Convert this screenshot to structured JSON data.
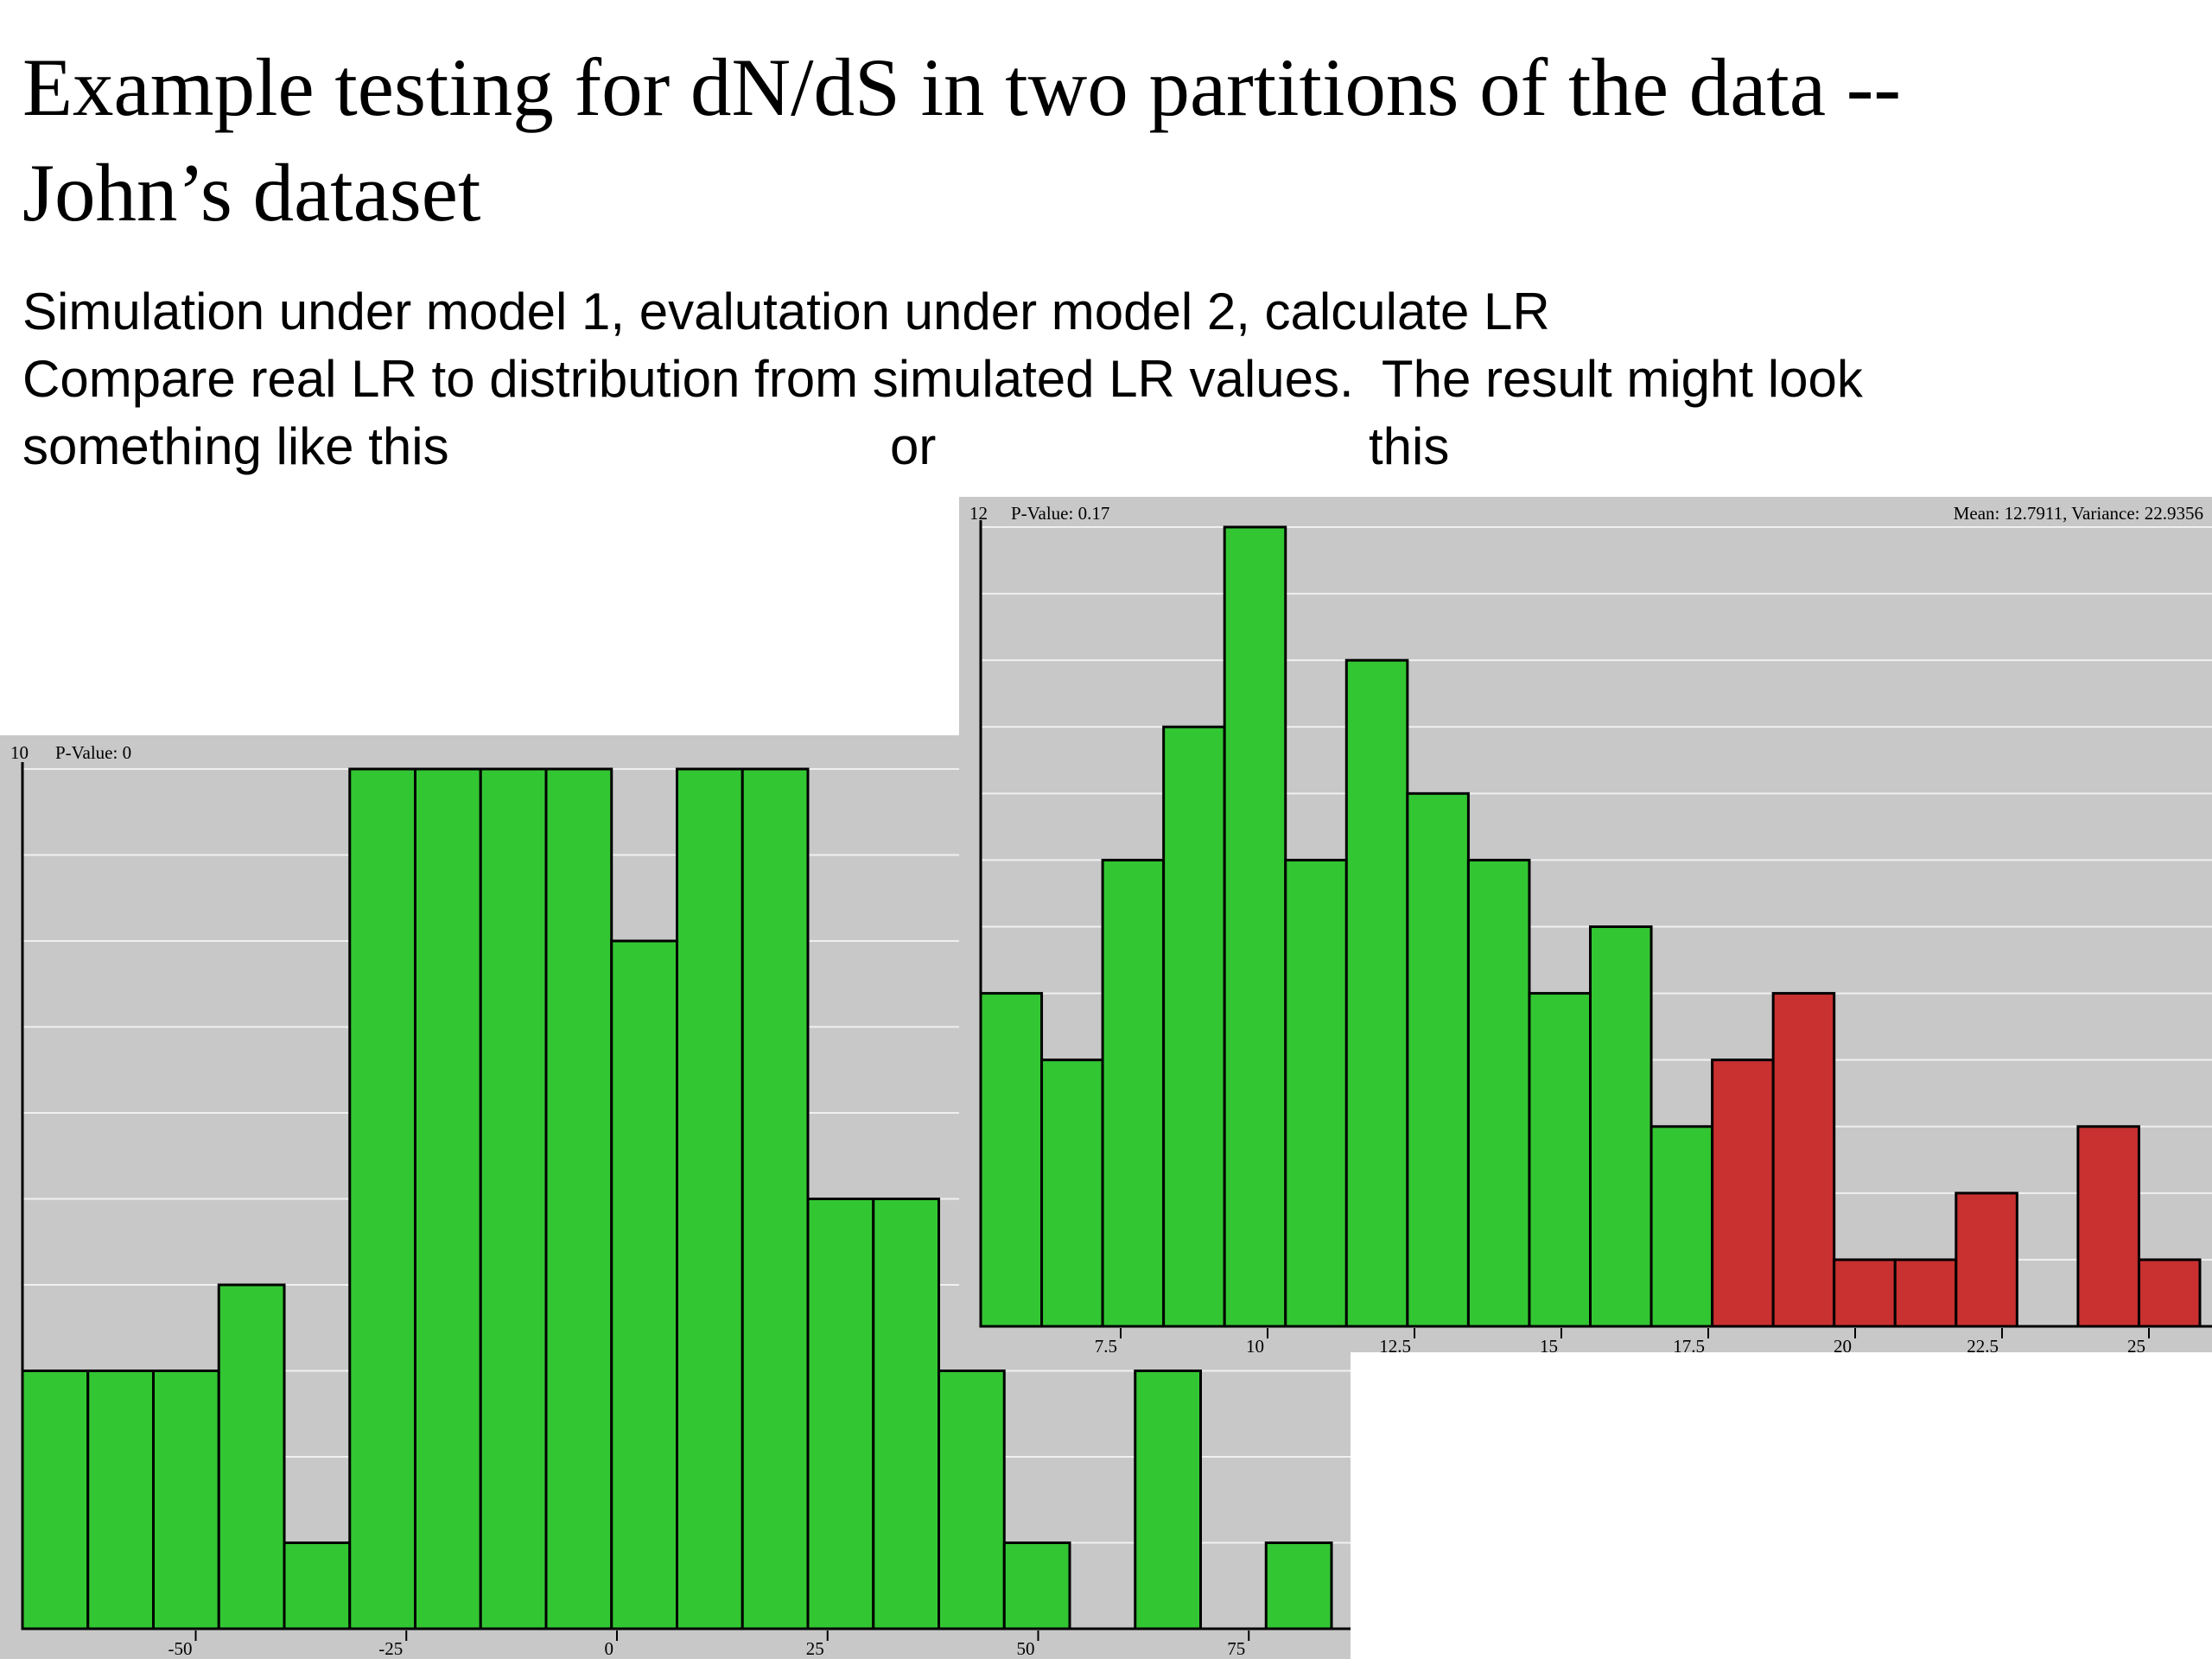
{
  "slide": {
    "title_line1": "Example testing for dN/dS in two partitions of the data --",
    "title_line2": "John’s dataset",
    "text_line1": "Simulation under model 1, evalutation under model 2, calculate LR",
    "text_line2": "Compare real LR to distribution from simulated LR values.  The result might look",
    "text_line3_a": "something like this",
    "text_line3_b": "or",
    "text_line3_c": "this"
  },
  "colors": {
    "panel": "#c8c8c8",
    "bar_green": "#33c633",
    "bar_red": "#c93030",
    "grid": "#f0f0f0",
    "axis": "#000000"
  },
  "chart_data": [
    {
      "type": "bar",
      "ymax_label": "10",
      "pvalue_text": "P-Value: 0",
      "ylim": [
        0,
        10
      ],
      "bin_edges": [
        -65.5,
        -65
      ],
      "x_ticks": [
        -50,
        -25,
        0,
        25,
        50,
        75
      ],
      "x_tick_labels": [
        "-50",
        "-25",
        "0",
        "25",
        "50",
        "75"
      ],
      "values": [
        3,
        3,
        3,
        4,
        1,
        10,
        10,
        10,
        10,
        8,
        10,
        10,
        5,
        5,
        3,
        1,
        0,
        3,
        0,
        1
      ],
      "red_from_index": 20
    },
    {
      "type": "bar",
      "ymax_label": "12",
      "pvalue_text": "P-Value: 0.17",
      "stats_text": "Mean: 12.7911, Variance: 22.9356",
      "ylim": [
        0,
        12
      ],
      "x_ticks": [
        7.5,
        10,
        12.5,
        15,
        17.5,
        20,
        22.5,
        25
      ],
      "x_tick_labels": [
        "7.5",
        "10",
        "12.5",
        "15",
        "17.5",
        "20",
        "22.5",
        "25"
      ],
      "values": [
        5,
        4,
        7,
        9,
        12,
        7,
        10,
        8,
        7,
        5,
        6,
        3,
        4,
        5,
        1,
        1,
        2,
        0,
        3,
        1
      ],
      "red_from_index": 12
    }
  ]
}
